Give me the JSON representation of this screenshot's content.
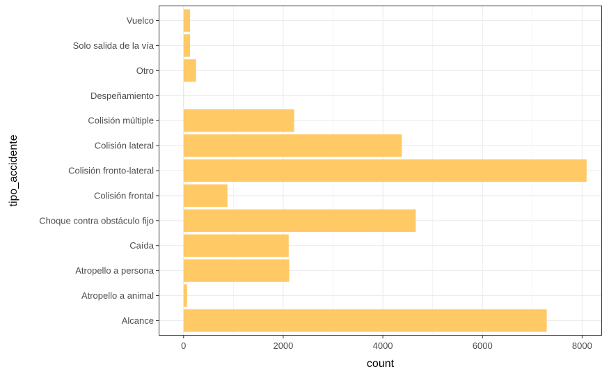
{
  "chart_data": {
    "type": "bar",
    "orientation": "horizontal",
    "xlabel": "count",
    "ylabel": "tipo_accidente",
    "xlim": [
      -500,
      8400
    ],
    "x_ticks": [
      0,
      2000,
      4000,
      6000,
      8000
    ],
    "categories": [
      "Alcance",
      "Atropello a animal",
      "Atropello a persona",
      "Caída",
      "Choque contra obstáculo fijo",
      "Colisión frontal",
      "Colisión fronto-lateral",
      "Colisión lateral",
      "Colisión múltiple",
      "Despeñamiento",
      "Otro",
      "Solo salida de la vía",
      "Vuelco"
    ],
    "values": [
      7290,
      70,
      2120,
      2110,
      4660,
      880,
      8090,
      4380,
      2220,
      5,
      250,
      130,
      130
    ],
    "grid": true,
    "legend": "none",
    "colors": {
      "bar": "#FFC966",
      "panel_background": "#FFFFFF",
      "grid": "#EBEBEB",
      "border": "#333333"
    }
  }
}
